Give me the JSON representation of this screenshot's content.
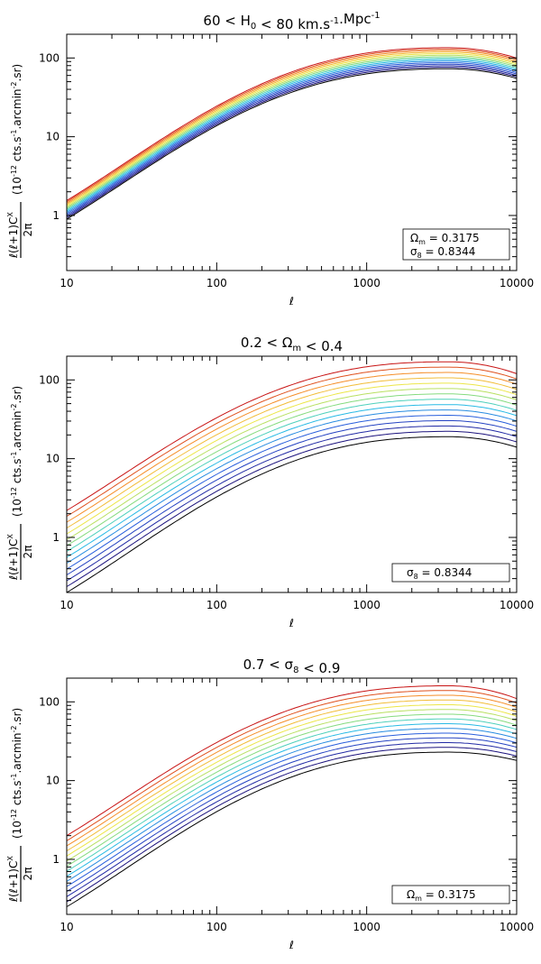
{
  "chart_data": [
    {
      "type": "line",
      "title": "60 < H0 < 80 km.s-1.Mpc-1",
      "title_parts": [
        "60 < H",
        "0",
        " < 80 km.s",
        "-1",
        ".Mpc",
        "-1"
      ],
      "xlabel": "ℓ",
      "ylabel_fraction_num": "ℓ(ℓ+1)C",
      "ylabel_fraction_sup": "X",
      "ylabel_fraction_den": "2π",
      "ylabel_units": "(10-12 cts.s-1.arcmin-2.sr)",
      "x_scale": "log",
      "y_scale": "log",
      "xlim": [
        10,
        10000
      ],
      "ylim": [
        0.2,
        200
      ],
      "x_ticks": [
        {
          "v": 10,
          "label": "10"
        },
        {
          "v": 100,
          "label": "100"
        },
        {
          "v": 1000,
          "label": "1000"
        },
        {
          "v": 10000,
          "label": "10000"
        }
      ],
      "y_ticks": [
        {
          "v": 1,
          "label": "1"
        },
        {
          "v": 10,
          "label": "10"
        },
        {
          "v": 100,
          "label": "100"
        }
      ],
      "curve_count": 15,
      "color_scale": "rainbow, black to red",
      "series_range": {
        "y_at_x10": [
          0.9,
          1.55
        ],
        "y_peak": [
          73,
          135
        ],
        "y_at_x10000": [
          55,
          100
        ],
        "peak_x": 3500
      },
      "legend_position": "bottom-right",
      "legend_lines": [
        {
          "symbol": "Ω",
          "sub": "m",
          "text": " = 0.3175"
        },
        {
          "symbol": "σ",
          "sub": "8",
          "text": " = 0.8344"
        }
      ]
    },
    {
      "type": "line",
      "title": "0.2 < Ωm < 0.4",
      "title_parts": [
        "0.2 < Ω",
        "m",
        " < 0.4"
      ],
      "xlabel": "ℓ",
      "ylabel_fraction_num": "ℓ(ℓ+1)C",
      "ylabel_fraction_sup": "X",
      "ylabel_fraction_den": "2π",
      "ylabel_units": "(10-12 cts.s-1.arcmin-2.sr)",
      "x_scale": "log",
      "y_scale": "log",
      "xlim": [
        10,
        10000
      ],
      "ylim": [
        0.2,
        200
      ],
      "x_ticks": [
        {
          "v": 10,
          "label": "10"
        },
        {
          "v": 100,
          "label": "100"
        },
        {
          "v": 1000,
          "label": "1000"
        },
        {
          "v": 10000,
          "label": "10000"
        }
      ],
      "y_ticks": [
        {
          "v": 1,
          "label": "1"
        },
        {
          "v": 10,
          "label": "10"
        },
        {
          "v": 100,
          "label": "100"
        }
      ],
      "curve_count": 15,
      "color_scale": "rainbow, black to red",
      "series_range": {
        "y_at_x10": [
          0.2,
          2.2
        ],
        "y_peak": [
          19,
          170
        ],
        "y_at_x10000": [
          14,
          120
        ],
        "peak_x": 3500
      },
      "legend_position": "bottom-right",
      "legend_lines": [
        {
          "symbol": "σ",
          "sub": "8",
          "text": " = 0.8344"
        }
      ]
    },
    {
      "type": "line",
      "title": "0.7 < σ8 < 0.9",
      "title_parts": [
        "0.7 < σ",
        "8",
        " < 0.9"
      ],
      "xlabel": "ℓ",
      "ylabel_fraction_num": "ℓ(ℓ+1)C",
      "ylabel_fraction_sup": "X",
      "ylabel_fraction_den": "2π",
      "ylabel_units": "(10-12 cts.s-1.arcmin-2.sr)",
      "x_scale": "log",
      "y_scale": "log",
      "xlim": [
        10,
        10000
      ],
      "ylim": [
        0.2,
        200
      ],
      "x_ticks": [
        {
          "v": 10,
          "label": "10"
        },
        {
          "v": 100,
          "label": "100"
        },
        {
          "v": 1000,
          "label": "1000"
        },
        {
          "v": 10000,
          "label": "10000"
        }
      ],
      "y_ticks": [
        {
          "v": 1,
          "label": "1"
        },
        {
          "v": 10,
          "label": "10"
        },
        {
          "v": 100,
          "label": "100"
        }
      ],
      "curve_count": 15,
      "color_scale": "rainbow, black to red",
      "series_range": {
        "y_at_x10": [
          0.25,
          2.0
        ],
        "y_peak": [
          23,
          160
        ],
        "y_at_x10000": [
          18,
          110
        ],
        "peak_x": 3500
      },
      "legend_position": "bottom-right",
      "legend_lines": [
        {
          "symbol": "Ω",
          "sub": "m",
          "text": " = 0.3175"
        }
      ]
    }
  ]
}
